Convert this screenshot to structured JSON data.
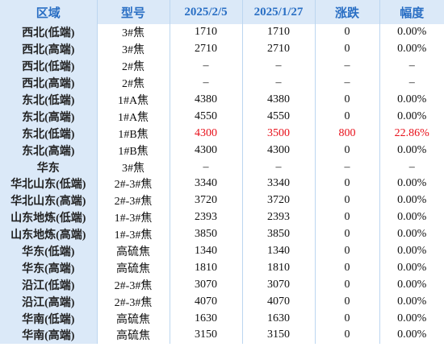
{
  "table": {
    "header": [
      "区域",
      "型号",
      "2025/2/5",
      "2025/1/27",
      "涨跌",
      "幅度"
    ],
    "rows": [
      [
        "西北(低端)",
        "3#焦",
        "1710",
        "1710",
        "0",
        "0.00%"
      ],
      [
        "西北(高端)",
        "3#焦",
        "2710",
        "2710",
        "0",
        "0.00%"
      ],
      [
        "西北(低端)",
        "2#焦",
        "–",
        "–",
        "–",
        "–"
      ],
      [
        "西北(高端)",
        "2#焦",
        "–",
        "–",
        "–",
        "–"
      ],
      [
        "东北(低端)",
        "1#A焦",
        "4380",
        "4380",
        "0",
        "0.00%"
      ],
      [
        "东北(高端)",
        "1#A焦",
        "4550",
        "4550",
        "0",
        "0.00%"
      ],
      [
        "东北(低端)",
        "1#B焦",
        "4300",
        "3500",
        "800",
        "22.86%"
      ],
      [
        "东北(高端)",
        "1#B焦",
        "4300",
        "4300",
        "0",
        "0.00%"
      ],
      [
        "华东",
        "3#焦",
        "–",
        "–",
        "–",
        "–"
      ],
      [
        "华北山东(低端)",
        "2#-3#焦",
        "3340",
        "3340",
        "0",
        "0.00%"
      ],
      [
        "华北山东(高端)",
        "2#-3#焦",
        "3720",
        "3720",
        "0",
        "0.00%"
      ],
      [
        "山东地炼(低端)",
        "1#-3#焦",
        "2393",
        "2393",
        "0",
        "0.00%"
      ],
      [
        "山东地炼(高端)",
        "1#-3#焦",
        "3850",
        "3850",
        "0",
        "0.00%"
      ],
      [
        "华东(低端)",
        "高硫焦",
        "1340",
        "1340",
        "0",
        "0.00%"
      ],
      [
        "华东(高端)",
        "高硫焦",
        "1810",
        "1810",
        "0",
        "0.00%"
      ],
      [
        "沿江(低端)",
        "2#-3#焦",
        "3070",
        "3070",
        "0",
        "0.00%"
      ],
      [
        "沿江(高端)",
        "2#-3#焦",
        "4070",
        "4070",
        "0",
        "0.00%"
      ],
      [
        "华南(低端)",
        "高硫焦",
        "1630",
        "1630",
        "0",
        "0.00%"
      ],
      [
        "华南(高端)",
        "高硫焦",
        "3150",
        "3150",
        "0",
        "0.00%"
      ]
    ],
    "highlight": {
      "row": 6,
      "color": "#e8101a"
    }
  }
}
